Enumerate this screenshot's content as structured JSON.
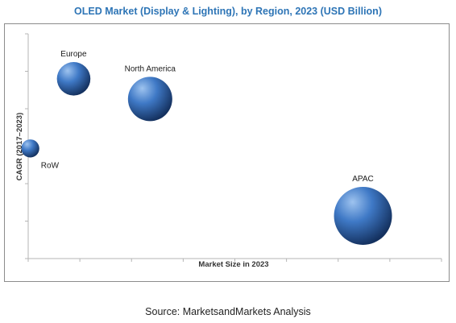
{
  "title": "OLED Market (Display & Lighting), by Region, 2023 (USD Billion)",
  "source": "Source: MarketsandMarkets Analysis",
  "colors": {
    "title": "#2e75b6",
    "bubble_light": "#9ec3ef",
    "bubble_mid": "#3f79c6",
    "bubble_dark": "#14315f",
    "axis": "#b5b5b5"
  },
  "chart_data": {
    "type": "bubble",
    "title": "OLED Market (Display & Lighting), by Region, 2023 (USD Billion)",
    "xlabel": "Market Size in 2023",
    "ylabel": "CAGR (2017–2023)",
    "xlim": [
      0,
      100
    ],
    "ylim": [
      0,
      100
    ],
    "x_tick_count": 9,
    "y_tick_count": 7,
    "grid": false,
    "legend": "none",
    "points": [
      {
        "label": "Europe",
        "x": 11,
        "y": 80,
        "size": 12
      },
      {
        "label": "North America",
        "x": 29.5,
        "y": 71,
        "size": 21
      },
      {
        "label": "RoW",
        "x": 0.5,
        "y": 49,
        "size": 3.5
      },
      {
        "label": "APAC",
        "x": 81,
        "y": 19,
        "size": 36
      }
    ]
  }
}
